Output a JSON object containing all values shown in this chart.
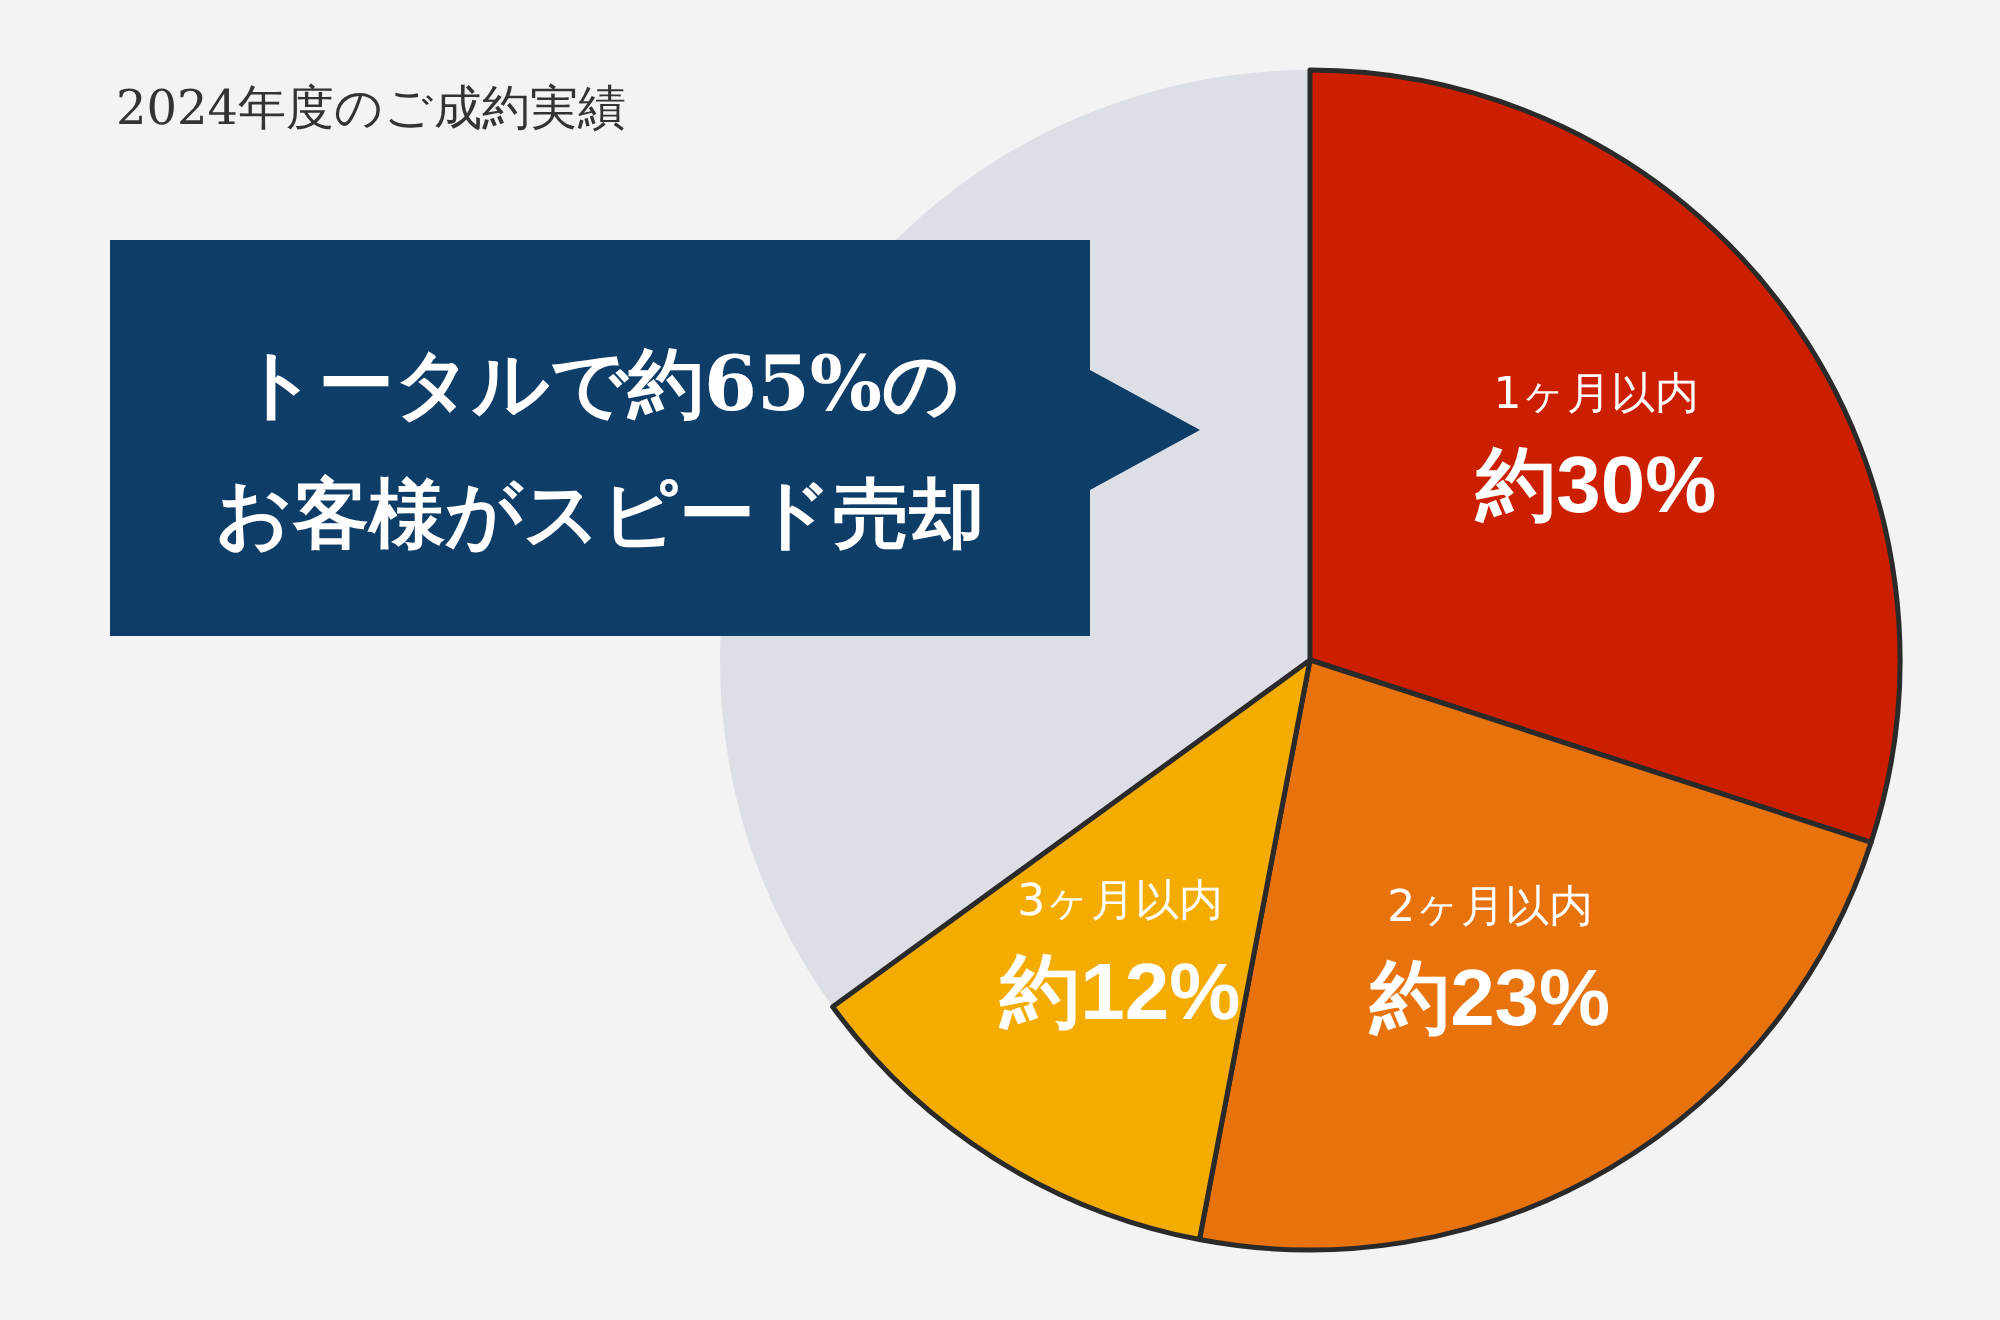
{
  "chart_data": {
    "type": "pie",
    "title": "2024年度のご成約実績",
    "categories": [
      "1ヶ月以内",
      "2ヶ月以内",
      "3ヶ月以内",
      null
    ],
    "values": [
      30,
      23,
      12,
      35
    ],
    "colors": [
      "#cc1f00",
      "#e8720c",
      "#f5ac00",
      "#dcdfe6"
    ],
    "value_labels": [
      "約30%",
      "約23%",
      "約12%",
      null
    ],
    "annotations": [
      "トータルで約65%の",
      "お客様がスピード売却"
    ]
  }
}
